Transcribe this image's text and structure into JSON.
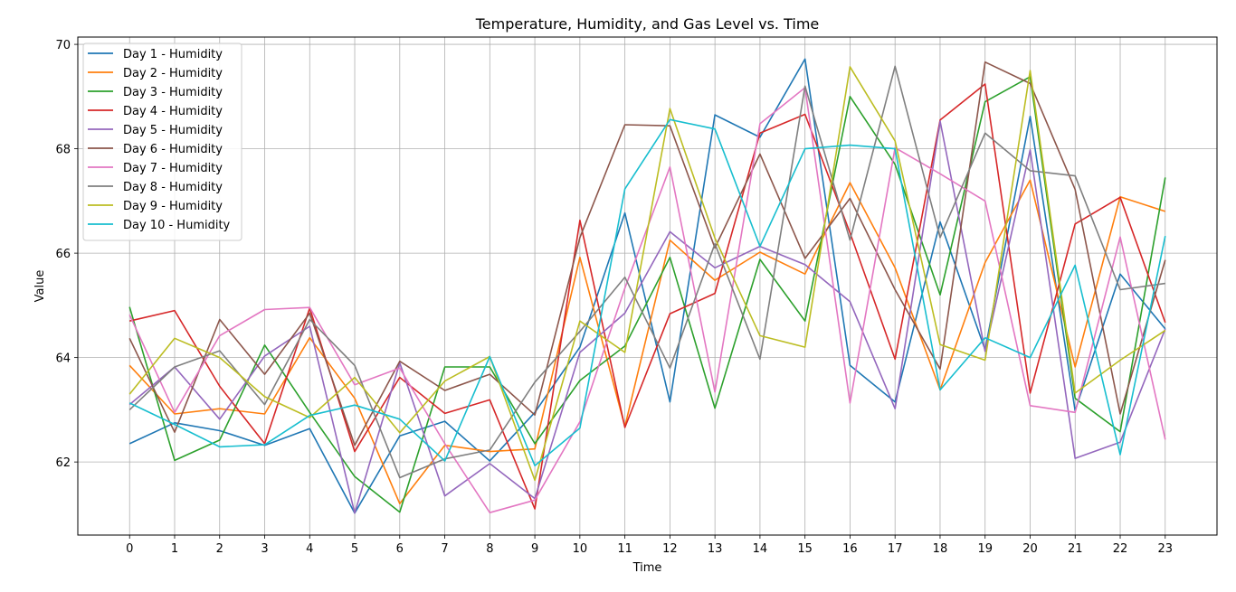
{
  "chart_data": {
    "type": "line",
    "title": "Temperature, Humidity, and Gas Level vs. Time",
    "xlabel": "Time",
    "ylabel": "Value",
    "x": [
      0,
      1,
      2,
      3,
      4,
      5,
      6,
      7,
      8,
      9,
      10,
      11,
      12,
      13,
      14,
      15,
      16,
      17,
      18,
      19,
      20,
      21,
      22,
      23
    ],
    "xlim": [
      -1.15,
      24.15
    ],
    "ylim": [
      60.6,
      70.14
    ],
    "yticks": [
      62,
      64,
      66,
      68,
      70
    ],
    "grid": true,
    "legend_position": "upper-left",
    "series": [
      {
        "name": "Day 1 - Humidity",
        "color": "#1f77b4",
        "values": [
          62.35,
          62.75,
          62.6,
          62.32,
          62.64,
          61.02,
          62.5,
          62.78,
          62.02,
          62.95,
          64.2,
          66.77,
          63.15,
          68.65,
          68.22,
          69.72,
          63.85,
          63.15,
          66.6,
          64.15,
          68.62,
          62.98,
          65.6,
          64.55
        ]
      },
      {
        "name": "Day 2 - Humidity",
        "color": "#ff7f0e",
        "values": [
          63.85,
          62.92,
          63.02,
          62.92,
          64.38,
          63.22,
          61.2,
          62.32,
          62.2,
          62.25,
          65.92,
          62.68,
          66.25,
          65.48,
          66.02,
          65.6,
          67.35,
          65.72,
          63.38,
          65.82,
          67.4,
          63.82,
          67.08,
          66.8
        ]
      },
      {
        "name": "Day 3 - Humidity",
        "color": "#2ca02c",
        "values": [
          64.97,
          62.03,
          62.42,
          64.24,
          62.95,
          61.72,
          61.04,
          63.82,
          63.82,
          62.35,
          63.56,
          64.22,
          65.92,
          63.03,
          65.88,
          64.7,
          69.0,
          67.7,
          65.2,
          68.9,
          69.38,
          63.22,
          62.58,
          67.45
        ]
      },
      {
        "name": "Day 4 - Humidity",
        "color": "#d62728",
        "values": [
          64.7,
          64.9,
          63.45,
          62.35,
          64.95,
          62.2,
          63.62,
          62.93,
          63.19,
          61.1,
          66.63,
          62.66,
          64.84,
          65.23,
          68.3,
          68.66,
          66.39,
          63.97,
          68.55,
          69.24,
          63.32,
          66.56,
          67.07,
          64.67
        ]
      },
      {
        "name": "Day 5 - Humidity",
        "color": "#9467bd",
        "values": [
          63.1,
          63.82,
          62.82,
          64.03,
          64.6,
          61.02,
          63.9,
          61.35,
          61.97,
          61.3,
          64.1,
          64.85,
          66.41,
          65.72,
          66.13,
          65.78,
          65.07,
          63.02,
          68.53,
          64.12,
          67.98,
          62.07,
          62.38,
          64.55
        ]
      },
      {
        "name": "Day 6 - Humidity",
        "color": "#8c564b",
        "values": [
          64.37,
          62.57,
          64.73,
          63.68,
          64.85,
          62.32,
          63.93,
          63.37,
          63.68,
          62.9,
          66.3,
          68.46,
          68.44,
          66.1,
          67.9,
          65.9,
          67.05,
          65.3,
          63.78,
          69.66,
          69.25,
          67.22,
          62.92,
          65.87
        ]
      },
      {
        "name": "Day 7 - Humidity",
        "color": "#e377c2",
        "values": [
          64.82,
          62.95,
          64.42,
          64.92,
          64.96,
          63.48,
          63.8,
          62.35,
          61.03,
          61.27,
          62.77,
          65.33,
          67.65,
          63.34,
          68.48,
          69.17,
          63.13,
          68.02,
          67.52,
          67.0,
          63.08,
          62.95,
          66.31,
          62.43
        ]
      },
      {
        "name": "Day 8 - Humidity",
        "color": "#7f7f7f",
        "values": [
          63.0,
          63.82,
          64.13,
          63.1,
          64.73,
          63.85,
          61.7,
          62.06,
          62.23,
          63.53,
          64.5,
          65.54,
          63.8,
          66.18,
          63.97,
          69.2,
          66.25,
          69.58,
          66.3,
          68.3,
          67.58,
          67.48,
          65.3,
          65.42
        ]
      },
      {
        "name": "Day 9 - Humidity",
        "color": "#bcbd22",
        "values": [
          63.3,
          64.37,
          64.0,
          63.25,
          62.85,
          63.62,
          62.56,
          63.55,
          64.02,
          61.65,
          64.7,
          64.1,
          68.77,
          66.29,
          64.42,
          64.2,
          69.57,
          68.15,
          64.25,
          63.95,
          69.5,
          63.32,
          63.95,
          64.52
        ]
      },
      {
        "name": "Day 10 - Humidity",
        "color": "#17becf",
        "values": [
          63.13,
          62.72,
          62.29,
          62.33,
          62.89,
          63.09,
          62.82,
          62.02,
          64.02,
          61.93,
          62.65,
          67.23,
          68.56,
          68.38,
          66.13,
          68.0,
          68.07,
          68.0,
          63.38,
          64.38,
          64.0,
          65.77,
          62.14,
          66.33
        ]
      }
    ]
  }
}
